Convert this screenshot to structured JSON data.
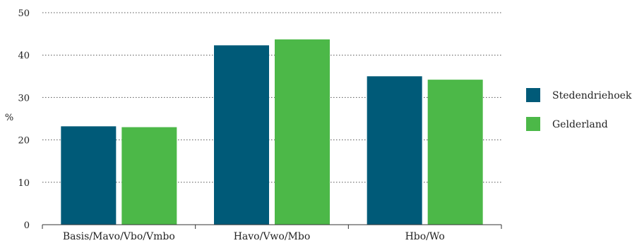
{
  "chart_data": {
    "type": "bar",
    "categories": [
      "Basis/Mavo/Vbo/Vmbo",
      "Havo/Vwo/Mbo",
      "Hbo/Wo"
    ],
    "series": [
      {
        "name": "Stedendriehoek",
        "values": [
          23.2,
          42.3,
          35.0
        ],
        "color": "#005a78"
      },
      {
        "name": "Gelderland",
        "values": [
          23.0,
          43.7,
          34.2
        ],
        "color": "#4cb848"
      }
    ],
    "ylabel": "%",
    "ylim": [
      0,
      50
    ],
    "yticks": [
      "0",
      "10",
      "20",
      "30",
      "40",
      "50"
    ],
    "grid": true,
    "legend_position": "right"
  }
}
